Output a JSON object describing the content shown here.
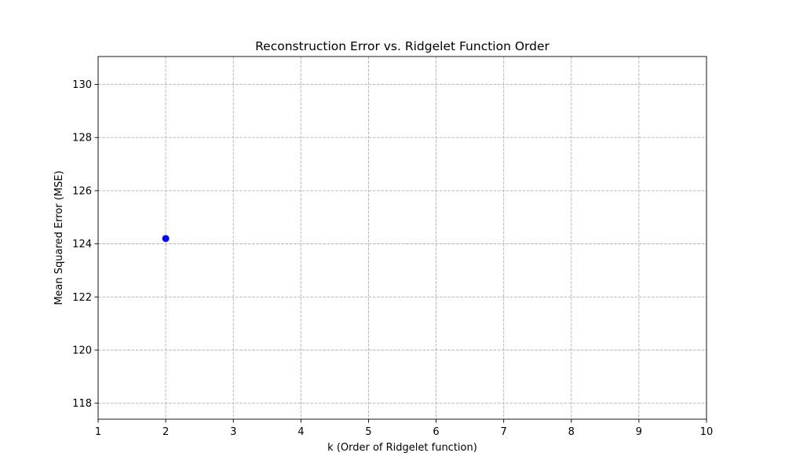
{
  "chart_data": {
    "type": "scatter",
    "title": "Reconstruction Error vs. Ridgelet Function Order",
    "xlabel": "k (Order of Ridgelet function)",
    "ylabel": "Mean Squared Error (MSE)",
    "xlim": [
      1,
      10
    ],
    "ylim": [
      117.4,
      131.05
    ],
    "xticks": [
      1,
      2,
      3,
      4,
      5,
      6,
      7,
      8,
      9,
      10
    ],
    "yticks": [
      118,
      120,
      122,
      124,
      126,
      128,
      130
    ],
    "grid": true,
    "series": [
      {
        "color": "#0000ff",
        "marker": "circle",
        "points": [
          {
            "x": 2,
            "y": 124.2
          }
        ]
      }
    ]
  }
}
